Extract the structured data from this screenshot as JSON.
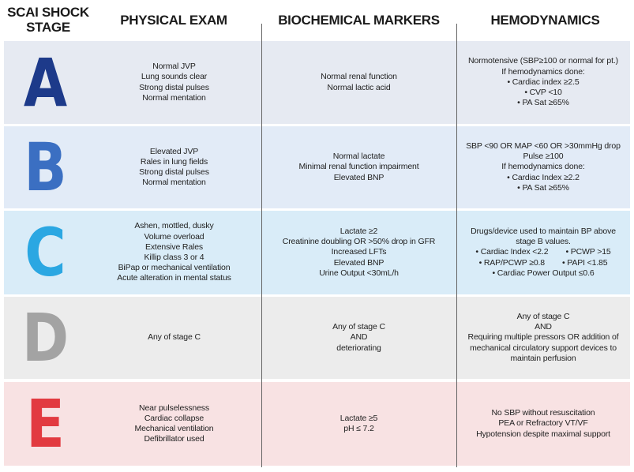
{
  "header": {
    "stage": [
      "SCAI SHOCK",
      "STAGE"
    ],
    "physical_exam": "PHYSICAL EXAM",
    "biochemical_markers": "BIOCHEMICAL MARKERS",
    "hemodynamics": "HEMODYNAMICS"
  },
  "rows": [
    {
      "stage": "A",
      "physical_exam": [
        "Normal JVP",
        "Lung sounds clear",
        "Strong distal pulses",
        "Normal mentation"
      ],
      "biochemical_markers": [
        "Normal renal function",
        "Normal lactic acid"
      ],
      "hemodynamics": [
        "Normotensive (SBP≥100 or normal for pt.)",
        "If hemodynamics done:",
        "• Cardiac index ≥2.5",
        "• CVP <10",
        "• PA Sat ≥65%"
      ]
    },
    {
      "stage": "B",
      "physical_exam": [
        "Elevated JVP",
        "Rales in lung fields",
        "Strong distal pulses",
        "Normal mentation"
      ],
      "biochemical_markers": [
        "Normal lactate",
        "Minimal renal function impairment",
        "Elevated BNP"
      ],
      "hemodynamics": [
        "SBP <90 OR MAP <60 OR >30mmHg drop",
        "Pulse ≥100",
        "If hemodynamics done:",
        "• Cardiac Index ≥2.2",
        "• PA Sat ≥65%"
      ]
    },
    {
      "stage": "C",
      "physical_exam": [
        "Ashen, mottled, dusky",
        "Volume overload",
        "Extensive Rales",
        "Killip class 3 or 4",
        "BiPap or mechanical ventilation",
        "Acute alteration in mental status"
      ],
      "biochemical_markers": [
        "Lactate ≥2",
        "Creatinine doubling OR >50% drop in GFR",
        "Increased LFTs",
        "Elevated BNP",
        "Urine Output <30mL/h"
      ],
      "hemodynamics": [
        "Drugs/device used to maintain BP above",
        "stage B values.",
        [
          "• Cardiac Index <2.2",
          "• PCWP >15"
        ],
        [
          "• RAP/PCWP ≥0.8",
          "• PAPI <1.85"
        ],
        "• Cardiac Power Output ≤0.6"
      ]
    },
    {
      "stage": "D",
      "physical_exam": [
        "Any of stage C"
      ],
      "biochemical_markers": [
        "Any of stage C",
        "AND",
        "deteriorating"
      ],
      "hemodynamics": [
        "Any of stage C",
        "AND",
        "Requiring multiple pressors OR addition of",
        "mechanical circulatory support devices to",
        "maintain perfusion"
      ]
    },
    {
      "stage": "E",
      "physical_exam": [
        "Near pulselessness",
        "Cardiac collapse",
        "Mechanical ventilation",
        "Defibrillator used"
      ],
      "biochemical_markers": [
        "Lactate ≥5",
        "pH ≤ 7.2"
      ],
      "hemodynamics": [
        "No SBP without resuscitation",
        "PEA or Refractory VT/VF",
        "Hypotension despite maximal support"
      ]
    }
  ]
}
